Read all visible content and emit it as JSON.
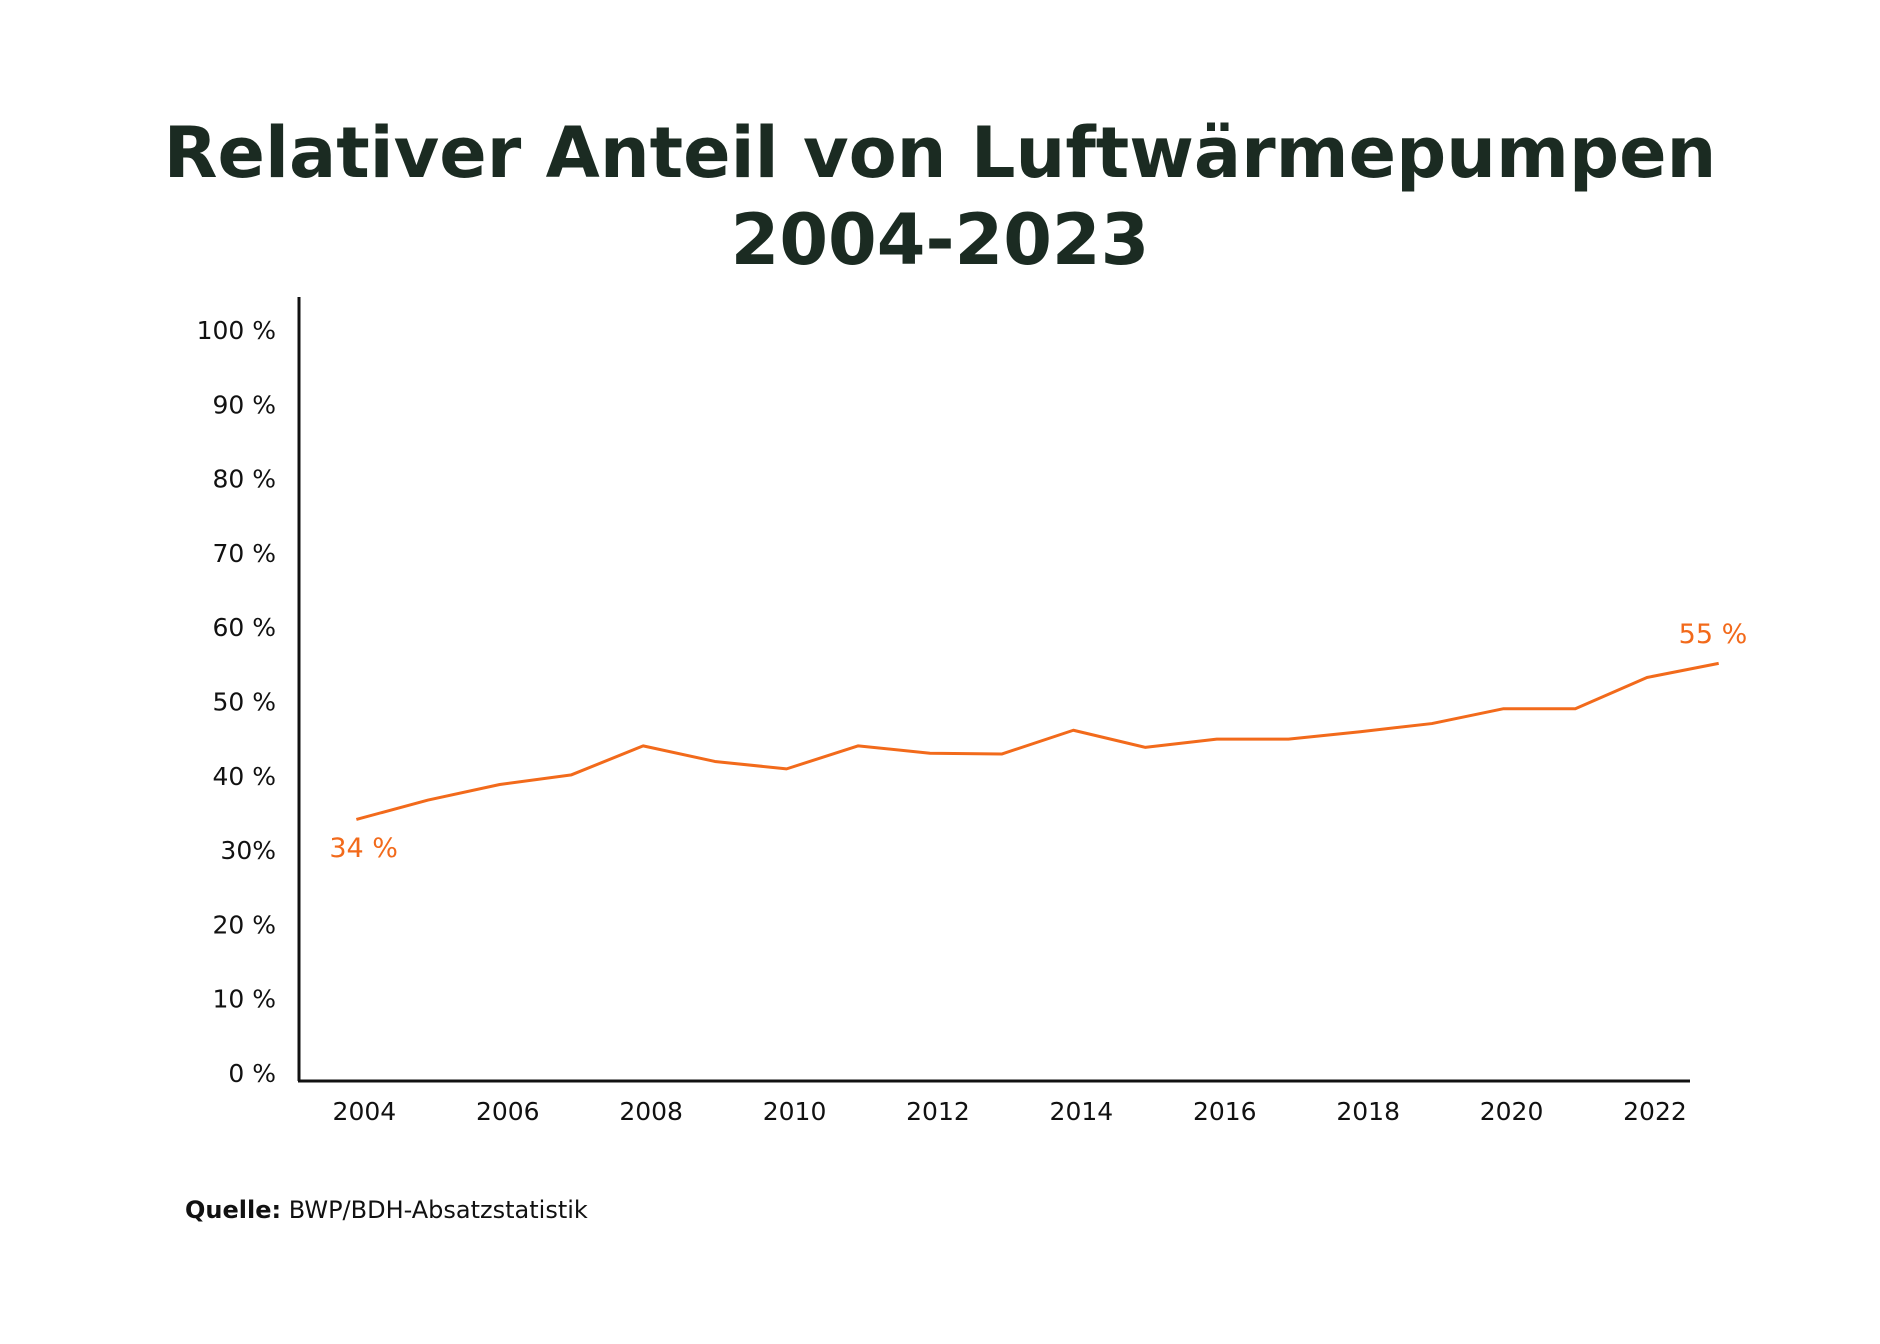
{
  "chart_data": {
    "type": "line",
    "title": [
      "Relativer Anteil von Luftwärmepumpen",
      "2004-2023"
    ],
    "x": [
      2004,
      2005,
      2006,
      2007,
      2008,
      2009,
      2010,
      2011,
      2012,
      2013,
      2014,
      2015,
      2016,
      2017,
      2018,
      2019,
      2020,
      2021,
      2022,
      2023
    ],
    "series": [
      {
        "name": "Relativer Anteil",
        "color": "#f26a1b",
        "values": [
          34.4,
          37.0,
          39.1,
          40.4,
          44.3,
          42.2,
          41.2,
          44.3,
          43.3,
          43.2,
          46.4,
          44.1,
          45.2,
          45.2,
          46.2,
          47.3,
          49.3,
          49.3,
          53.5,
          55.4
        ],
        "value_labels": [
          "34 %",
          null,
          null,
          null,
          null,
          null,
          null,
          null,
          null,
          null,
          null,
          null,
          null,
          null,
          null,
          null,
          null,
          null,
          null,
          "55 %"
        ]
      }
    ],
    "xlim": [
      2003.2,
      2022.6
    ],
    "xticks": [
      2004,
      2006,
      2008,
      2010,
      2012,
      2014,
      2016,
      2018,
      2020,
      2022
    ],
    "ylim": [
      0,
      100
    ],
    "yticks": [
      {
        "value": 0,
        "label": "0 %"
      },
      {
        "value": 10,
        "label": "10 %"
      },
      {
        "value": 20,
        "label": "20 %"
      },
      {
        "value": 30,
        "label": "30%"
      },
      {
        "value": 40,
        "label": "40 %"
      },
      {
        "value": 50,
        "label": "50 %"
      },
      {
        "value": 60,
        "label": "60 %"
      },
      {
        "value": 70,
        "label": "70 %"
      },
      {
        "value": 80,
        "label": "80 %"
      },
      {
        "value": 90,
        "label": "90 %"
      },
      {
        "value": 100,
        "label": "100 %"
      }
    ],
    "grid": false,
    "source": {
      "label": "Quelle:",
      "text": "BWP/BDH-Absatzstatistik"
    }
  }
}
